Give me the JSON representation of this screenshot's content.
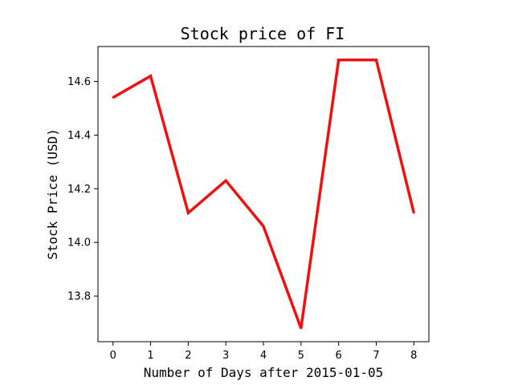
{
  "chart_data": {
    "type": "line",
    "title": "Stock price of FI",
    "xlabel": "Number of Days after 2015-01-05",
    "ylabel": "Stock Price (USD)",
    "x": [
      0,
      1,
      2,
      3,
      4,
      5,
      6,
      7,
      8
    ],
    "series": [
      {
        "values": [
          14.54,
          14.62,
          14.11,
          14.23,
          14.06,
          13.68,
          14.68,
          14.68,
          14.11
        ],
        "color": "#ee1111"
      }
    ],
    "xlim": [
      -0.4,
      8.4
    ],
    "ylim": [
      13.63,
      14.73
    ],
    "xticks": [
      "0",
      "1",
      "2",
      "3",
      "4",
      "5",
      "6",
      "7",
      "8"
    ],
    "yticks": [
      "13.8",
      "14.0",
      "14.2",
      "14.4",
      "14.6"
    ],
    "grid": false,
    "legend": "none"
  }
}
